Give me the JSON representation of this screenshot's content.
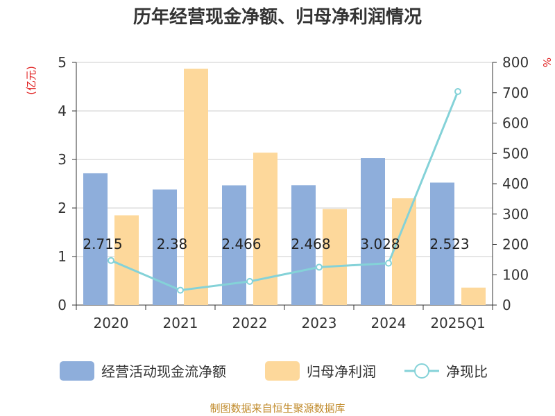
{
  "chart_data": {
    "type": "bar",
    "title": "历年经营现金净额、归母净利润情况",
    "categories": [
      "2020",
      "2021",
      "2022",
      "2023",
      "2024",
      "2025Q1"
    ],
    "left_axis": {
      "unit": "(亿元)",
      "ylim": [
        0,
        5
      ],
      "ticks": [
        0,
        1,
        2,
        3,
        4,
        5
      ]
    },
    "right_axis": {
      "unit": "%",
      "ylim": [
        0,
        800
      ],
      "ticks": [
        0,
        100,
        200,
        300,
        400,
        500,
        600,
        700,
        800
      ]
    },
    "series": [
      {
        "name": "经营活动现金流净额",
        "type": "bar",
        "axis": "left",
        "values": [
          2.715,
          2.38,
          2.466,
          2.468,
          3.028,
          2.523
        ],
        "data_labels": [
          "2.715",
          "2.38",
          "2.466",
          "2.468",
          "3.028",
          "2.523"
        ]
      },
      {
        "name": "归母净利润",
        "type": "bar",
        "axis": "left",
        "values": [
          1.85,
          4.87,
          3.14,
          1.98,
          2.2,
          0.36
        ]
      },
      {
        "name": "净现比",
        "type": "line",
        "axis": "right",
        "values": [
          147,
          49,
          78,
          125,
          138,
          704
        ]
      }
    ],
    "colors": {
      "bar1": "#8eaedb",
      "bar2": "#fdd89b",
      "line": "#84d2d8"
    },
    "grid": true,
    "legend_position": "bottom"
  },
  "source": "制图数据来自恒生聚源数据库",
  "colors": {
    "unit_text": "#e02020",
    "source_text": "#c08a2a"
  }
}
